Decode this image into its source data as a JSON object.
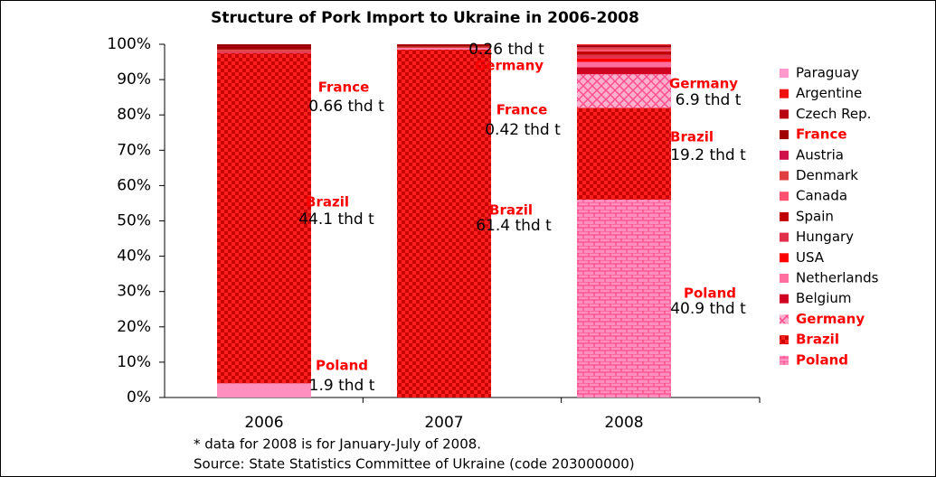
{
  "chart_data": {
    "type": "stacked_bar_100",
    "title": "Structure of Pork Import to Ukraine in 2006-2008",
    "categories": [
      "2006",
      "2007",
      "2008"
    ],
    "ylim": [
      0,
      100
    ],
    "yticks": [
      {
        "value": 0,
        "label": "0%"
      },
      {
        "value": 10,
        "label": "10%"
      },
      {
        "value": 20,
        "label": "20%"
      },
      {
        "value": 30,
        "label": "30%"
      },
      {
        "value": 40,
        "label": "40%"
      },
      {
        "value": 50,
        "label": "50%"
      },
      {
        "value": 60,
        "label": "60%"
      },
      {
        "value": 70,
        "label": "70%"
      },
      {
        "value": 80,
        "label": "80%"
      },
      {
        "value": 90,
        "label": "90%"
      },
      {
        "value": 100,
        "label": "100%"
      }
    ],
    "grid": false,
    "legend": "right",
    "series": [
      {
        "name": "Poland",
        "color": "#ff8fbf",
        "bold": true,
        "values": [
          4,
          0,
          56
        ]
      },
      {
        "name": "Brazil",
        "color": "#ff1a1a",
        "bold": true,
        "values": [
          93.5,
          98.5,
          26
        ]
      },
      {
        "name": "Germany",
        "color": "#ff7fa8",
        "bold": true,
        "values": [
          0,
          0.4,
          9.5
        ]
      },
      {
        "name": "Belgium",
        "color": "#d00020",
        "bold": false,
        "values": [
          0,
          0,
          2
        ]
      },
      {
        "name": "Netherlands",
        "color": "#ff6f9f",
        "bold": false,
        "values": [
          0,
          0,
          1.5
        ]
      },
      {
        "name": "USA",
        "color": "#ff0000",
        "bold": false,
        "values": [
          0,
          0,
          1
        ]
      },
      {
        "name": "Hungary",
        "color": "#e0304a",
        "bold": false,
        "values": [
          0.5,
          0.2,
          1
        ]
      },
      {
        "name": "Spain",
        "color": "#c00000",
        "bold": false,
        "values": [
          0,
          0,
          1
        ]
      },
      {
        "name": "Canada",
        "color": "#ff5070",
        "bold": false,
        "values": [
          0,
          0,
          0.5
        ]
      },
      {
        "name": "Denmark",
        "color": "#e04040",
        "bold": false,
        "values": [
          0.5,
          0.2,
          0.5
        ]
      },
      {
        "name": "Austria",
        "color": "#d0104a",
        "bold": false,
        "values": [
          0,
          0,
          0.2
        ]
      },
      {
        "name": "France",
        "color": "#a00000",
        "bold": true,
        "values": [
          1.5,
          0.7,
          0.3
        ]
      },
      {
        "name": "Czech Rep.",
        "color": "#b80010",
        "bold": false,
        "values": [
          0,
          0,
          0.3
        ]
      },
      {
        "name": "Argentine",
        "color": "#f01010",
        "bold": false,
        "values": [
          0,
          0,
          0.2
        ]
      },
      {
        "name": "Paraguay",
        "color": "#ff99cc",
        "bold": false,
        "values": [
          0,
          0,
          0
        ]
      }
    ],
    "annotations": [
      {
        "name": "France",
        "amount": "0.66 thd t"
      },
      {
        "name": "Brazil",
        "amount": "44.1 thd t"
      },
      {
        "name": "Poland",
        "amount": "1.9 thd t"
      },
      {
        "name": "France",
        "amount": "0.42 thd t"
      },
      {
        "name": "Brazil",
        "amount": "61.4 thd t"
      },
      {
        "name": "Germany",
        "amount": "0.26 thd t"
      },
      {
        "name": "Germany",
        "amount": "6.9 thd t"
      },
      {
        "name": "Brazil",
        "amount": "19.2 thd t"
      },
      {
        "name": "Poland",
        "amount": "40.9 thd t"
      }
    ],
    "notes": [
      "* data for 2008 is for January-July of 2008.",
      "Source: State Statistics Committee of Ukraine (code 203000000)"
    ]
  }
}
